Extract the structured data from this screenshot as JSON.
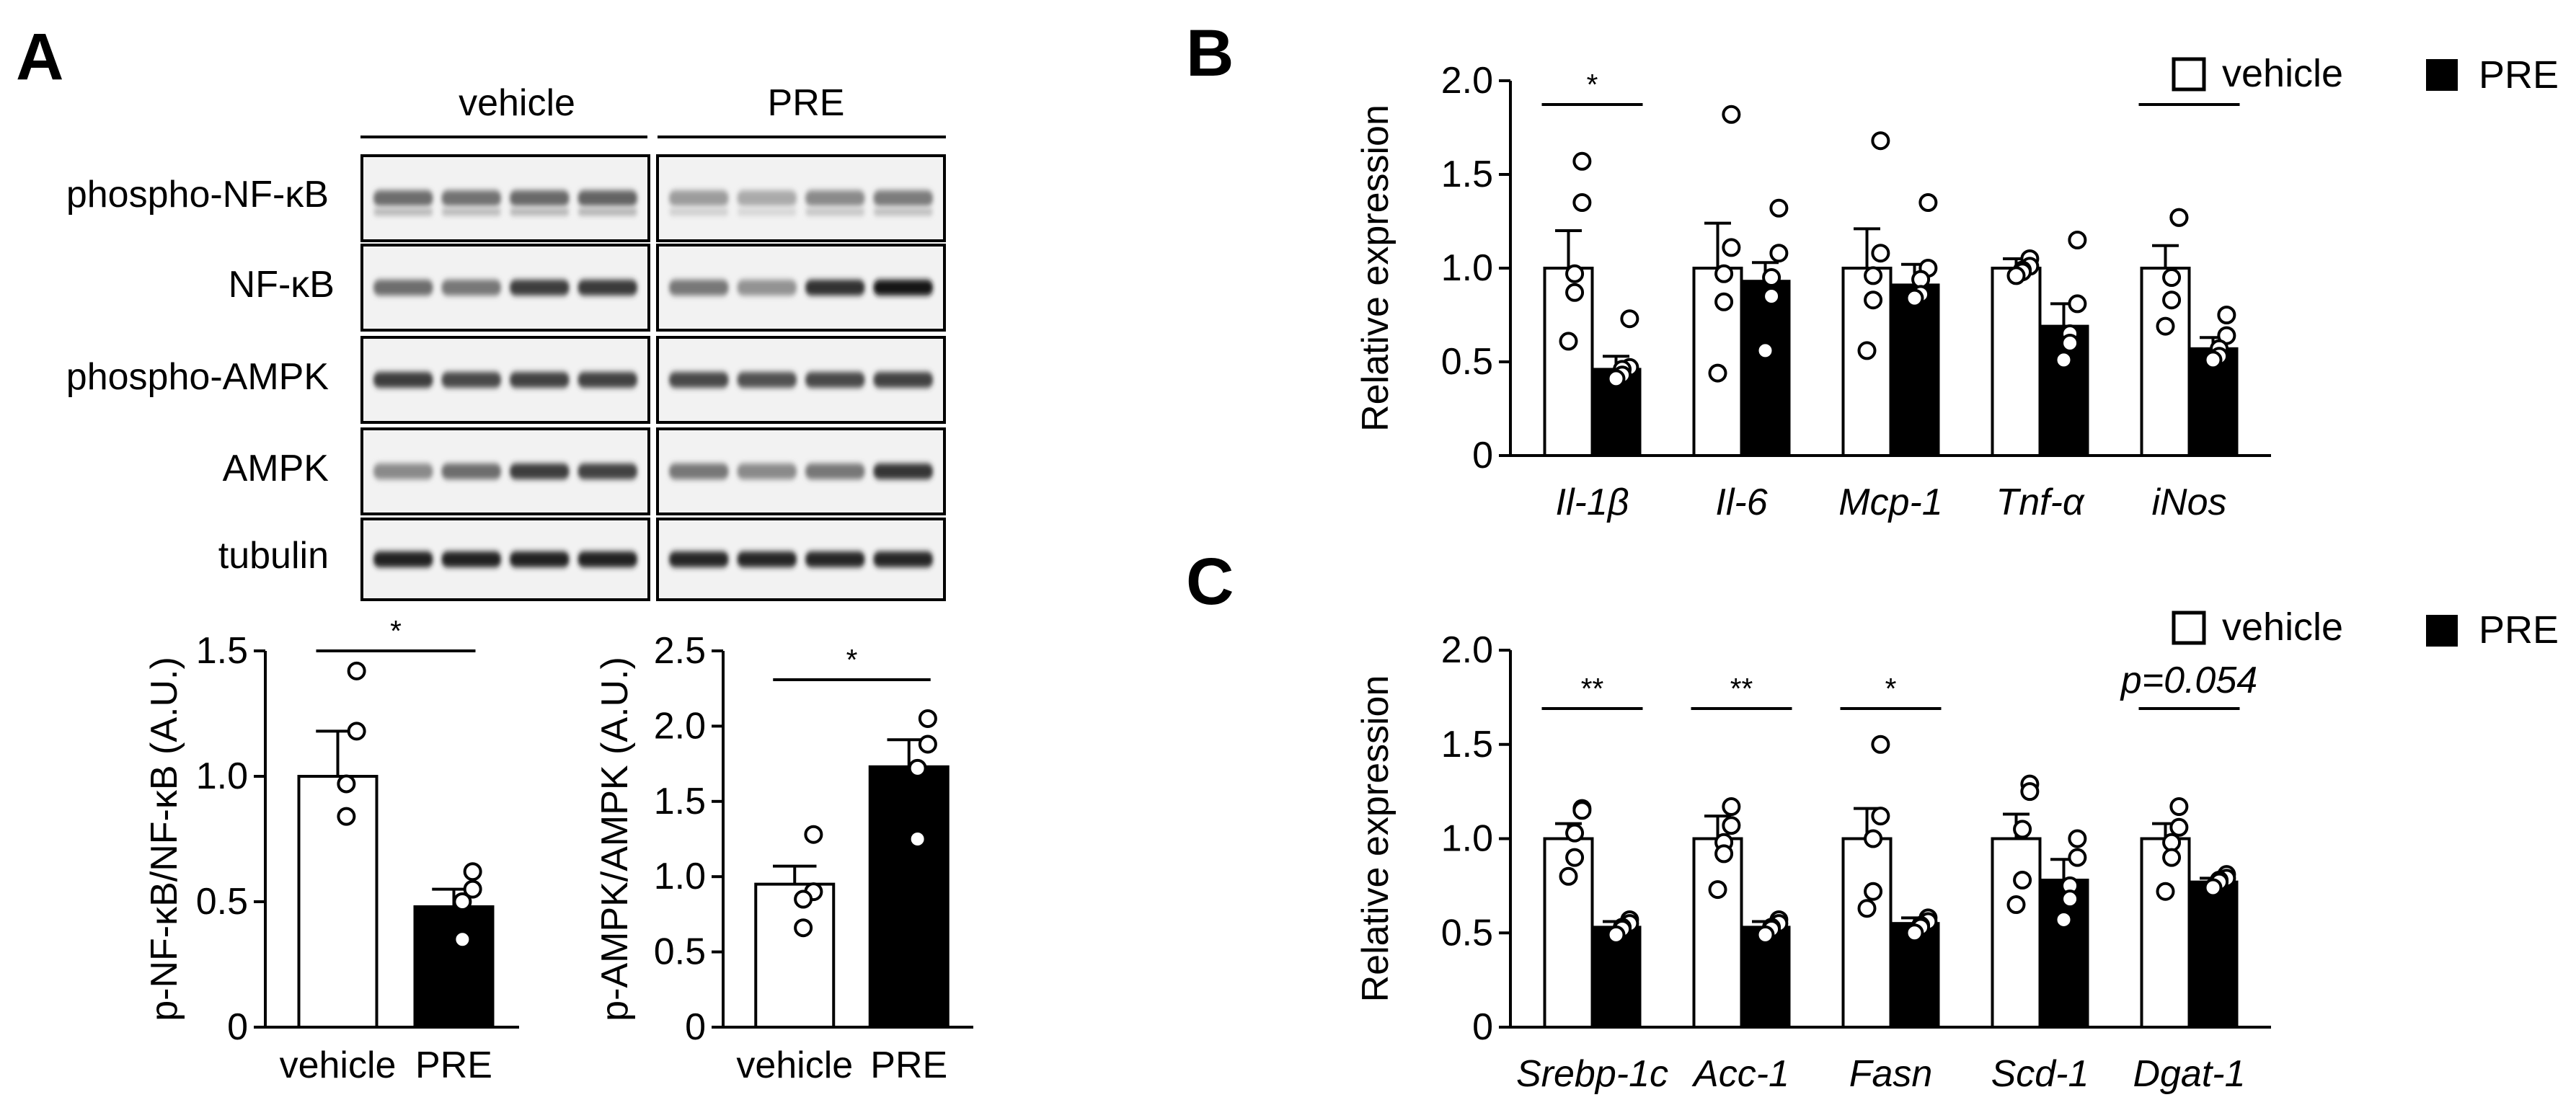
{
  "panels": {
    "A": {
      "letter": "A",
      "blot": {
        "groups": [
          "vehicle",
          "PRE"
        ],
        "rows": [
          "phospho-NF-κB",
          "NF-κB",
          "phospho-AMPK",
          "AMPK",
          "tubulin"
        ],
        "band_intensity": [
          [
            [
              0.62,
              0.6,
              0.64,
              0.66
            ],
            [
              0.42,
              0.36,
              0.5,
              0.56
            ]
          ],
          [
            [
              0.62,
              0.58,
              0.82,
              0.84
            ],
            [
              0.58,
              0.46,
              0.88,
              0.98
            ]
          ],
          [
            [
              0.82,
              0.78,
              0.8,
              0.8
            ],
            [
              0.78,
              0.74,
              0.78,
              0.8
            ]
          ],
          [
            [
              0.5,
              0.62,
              0.82,
              0.8
            ],
            [
              0.58,
              0.5,
              0.58,
              0.86
            ]
          ],
          [
            [
              0.94,
              0.94,
              0.94,
              0.94
            ],
            [
              0.92,
              0.92,
              0.92,
              0.92
            ]
          ]
        ]
      },
      "bar_charts": [
        {
          "type": "bar",
          "ylabel": "p-NF-κB/NF-κB (A.U.)",
          "ylim": [
            0,
            1.5
          ],
          "yticks": [
            "0",
            "0.5",
            "1.0",
            "1.5"
          ],
          "ytick_values": [
            0,
            0.5,
            1.0,
            1.5
          ],
          "categories": [
            "vehicle",
            "PRE"
          ],
          "values": [
            1.0,
            0.48
          ],
          "errors": [
            0.18,
            0.07
          ],
          "fills": [
            "#ffffff",
            "#000000"
          ],
          "points": [
            [
              1.42,
              1.18,
              0.97,
              0.84
            ],
            [
              0.62,
              0.55,
              0.5,
              0.35
            ]
          ],
          "significance": [
            {
              "from": 0,
              "to": 1,
              "label": "*"
            }
          ]
        },
        {
          "type": "bar",
          "ylabel": "p-AMPK/AMPK (A.U.)",
          "ylim": [
            0,
            2.5
          ],
          "yticks": [
            "0",
            "0.5",
            "1.0",
            "1.5",
            "2.0",
            "2.5"
          ],
          "ytick_values": [
            0,
            0.5,
            1.0,
            1.5,
            2.0,
            2.5
          ],
          "categories": [
            "vehicle",
            "PRE"
          ],
          "values": [
            0.95,
            1.73
          ],
          "errors": [
            0.12,
            0.18
          ],
          "fills": [
            "#ffffff",
            "#000000"
          ],
          "points": [
            [
              1.28,
              0.9,
              0.85,
              0.66
            ],
            [
              2.05,
              1.88,
              1.72,
              1.25
            ]
          ],
          "significance": [
            {
              "from": 0,
              "to": 1,
              "label": "*"
            }
          ]
        }
      ]
    },
    "B": {
      "letter": "B",
      "chart": {
        "type": "bar",
        "ylabel": "Relative expression",
        "ylim": [
          0,
          2.0
        ],
        "yticks": [
          "0",
          "0.5",
          "1.0",
          "1.5",
          "2.0"
        ],
        "ytick_values": [
          0,
          0.5,
          1.0,
          1.5,
          2.0
        ],
        "categories": [
          "Il-1β",
          "Il-6",
          "Mcp-1",
          "Tnf-α",
          "iNos"
        ],
        "series": [
          {
            "name": "vehicle",
            "fill": "#ffffff",
            "values": [
              1.0,
              1.0,
              1.0,
              1.0,
              1.0
            ],
            "errors": [
              0.2,
              0.24,
              0.21,
              0.05,
              0.12
            ],
            "points": [
              [
                1.57,
                1.35,
                0.97,
                0.87,
                0.61
              ],
              [
                1.82,
                1.11,
                0.97,
                0.82,
                0.44
              ],
              [
                1.68,
                1.08,
                0.96,
                0.83,
                0.56
              ],
              [
                1.05,
                1.01,
                0.99,
                0.98,
                0.96
              ],
              [
                1.27,
                1.27,
                0.95,
                0.83,
                0.69
              ]
            ]
          },
          {
            "name": "PRE",
            "fill": "#000000",
            "values": [
              0.46,
              0.93,
              0.91,
              0.69,
              0.57
            ],
            "errors": [
              0.07,
              0.1,
              0.11,
              0.12,
              0.06
            ],
            "points": [
              [
                0.73,
                0.47,
                0.46,
                0.43,
                0.41
              ],
              [
                1.32,
                1.08,
                0.95,
                0.85,
                0.56
              ],
              [
                1.35,
                1.0,
                0.94,
                0.86,
                0.84
              ],
              [
                1.15,
                0.81,
                0.65,
                0.6,
                0.51
              ],
              [
                0.75,
                0.64,
                0.57,
                0.53,
                0.51
              ]
            ]
          }
        ],
        "significance": [
          {
            "category": 0,
            "label": "*"
          },
          {
            "category": 4,
            "label": "**"
          }
        ],
        "legend_placement": "top-right"
      }
    },
    "C": {
      "letter": "C",
      "chart": {
        "type": "bar",
        "ylabel": "Relative expression",
        "ylim": [
          0,
          2.0
        ],
        "yticks": [
          "0",
          "0.5",
          "1.0",
          "1.5",
          "2.0"
        ],
        "ytick_values": [
          0,
          0.5,
          1.0,
          1.5,
          2.0
        ],
        "categories": [
          "Srebp-1c",
          "Acc-1",
          "Fasn",
          "Scd-1",
          "Dgat-1"
        ],
        "series": [
          {
            "name": "vehicle",
            "fill": "#ffffff",
            "values": [
              1.0,
              1.0,
              1.0,
              1.0,
              1.0
            ],
            "errors": [
              0.08,
              0.12,
              0.16,
              0.13,
              0.08
            ],
            "points": [
              [
                1.16,
                1.15,
                1.03,
                0.9,
                0.8
              ],
              [
                1.17,
                1.07,
                0.98,
                0.92,
                0.73
              ],
              [
                1.5,
                1.12,
                1.0,
                0.72,
                0.63
              ],
              [
                1.29,
                1.25,
                1.05,
                0.78,
                0.65
              ],
              [
                1.17,
                1.06,
                0.98,
                0.9,
                0.72
              ]
            ]
          },
          {
            "name": "PRE",
            "fill": "#000000",
            "values": [
              0.53,
              0.53,
              0.55,
              0.78,
              0.77
            ],
            "errors": [
              0.03,
              0.03,
              0.03,
              0.11,
              0.02
            ],
            "points": [
              [
                0.57,
                0.55,
                0.53,
                0.52,
                0.49
              ],
              [
                0.57,
                0.55,
                0.53,
                0.52,
                0.49
              ],
              [
                0.58,
                0.56,
                0.54,
                0.53,
                0.5
              ],
              [
                1.0,
                0.9,
                0.75,
                0.68,
                0.57
              ],
              [
                0.81,
                0.79,
                0.78,
                0.77,
                0.74
              ]
            ]
          }
        ],
        "significance": [
          {
            "category": 0,
            "label": "**"
          },
          {
            "category": 1,
            "label": "**"
          },
          {
            "category": 2,
            "label": "*"
          },
          {
            "category": 4,
            "label": "p=0.054",
            "italic": true
          }
        ],
        "legend_placement": "top-right"
      }
    }
  },
  "chart_data": [
    {
      "type": "bar",
      "title": "",
      "xlabel": "",
      "ylabel": "p-NF-κB/NF-κB (A.U.)",
      "ylim": [
        0,
        1.5
      ],
      "categories": [
        "vehicle",
        "PRE"
      ],
      "values": [
        1.0,
        0.48
      ],
      "errors": [
        0.18,
        0.07
      ]
    },
    {
      "type": "bar",
      "title": "",
      "xlabel": "",
      "ylabel": "p-AMPK/AMPK (A.U.)",
      "ylim": [
        0,
        2.5
      ],
      "categories": [
        "vehicle",
        "PRE"
      ],
      "values": [
        0.95,
        1.73
      ],
      "errors": [
        0.12,
        0.18
      ]
    },
    {
      "type": "bar",
      "title": "",
      "xlabel": "",
      "ylabel": "Relative expression",
      "ylim": [
        0,
        2.0
      ],
      "categories": [
        "Il-1β",
        "Il-6",
        "Mcp-1",
        "Tnf-α",
        "iNos"
      ],
      "series": [
        {
          "name": "vehicle",
          "values": [
            1.0,
            1.0,
            1.0,
            1.0,
            1.0
          ]
        },
        {
          "name": "PRE",
          "values": [
            0.46,
            0.93,
            0.91,
            0.69,
            0.57
          ]
        }
      ],
      "legend": "top-right"
    },
    {
      "type": "bar",
      "title": "",
      "xlabel": "",
      "ylabel": "Relative expression",
      "ylim": [
        0,
        2.0
      ],
      "categories": [
        "Srebp-1c",
        "Acc-1",
        "Fasn",
        "Scd-1",
        "Dgat-1"
      ],
      "series": [
        {
          "name": "vehicle",
          "values": [
            1.0,
            1.0,
            1.0,
            1.0,
            1.0
          ]
        },
        {
          "name": "PRE",
          "values": [
            0.53,
            0.53,
            0.55,
            0.78,
            0.77
          ]
        }
      ],
      "legend": "top-right"
    }
  ]
}
